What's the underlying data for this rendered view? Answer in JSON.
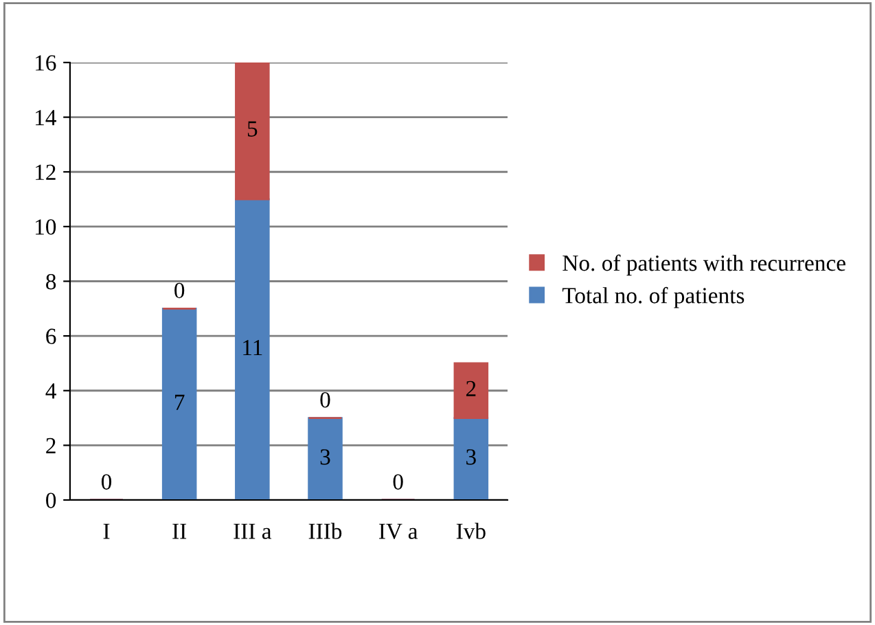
{
  "chart_data": {
    "type": "bar",
    "stacked": true,
    "categories": [
      "I",
      "II",
      "III a",
      "IIIb",
      "IV a",
      "Ivb"
    ],
    "series": [
      {
        "name": "Total no. of patients",
        "color": "#4f81bd",
        "values": [
          0,
          7,
          11,
          3,
          0,
          3
        ],
        "value_labels": [
          null,
          "7",
          "11",
          "3",
          null,
          "3"
        ]
      },
      {
        "name": "No. of patients with recurrence",
        "color": "#c0504d",
        "values": [
          0,
          0,
          5,
          0,
          0,
          2
        ],
        "value_labels": [
          "0",
          "0",
          "5",
          "0",
          "0",
          "2"
        ]
      }
    ],
    "ylim": [
      0,
      16
    ],
    "yticks": [
      0,
      2,
      4,
      6,
      8,
      10,
      12,
      14,
      16
    ],
    "grid": "y",
    "legend": "right"
  }
}
